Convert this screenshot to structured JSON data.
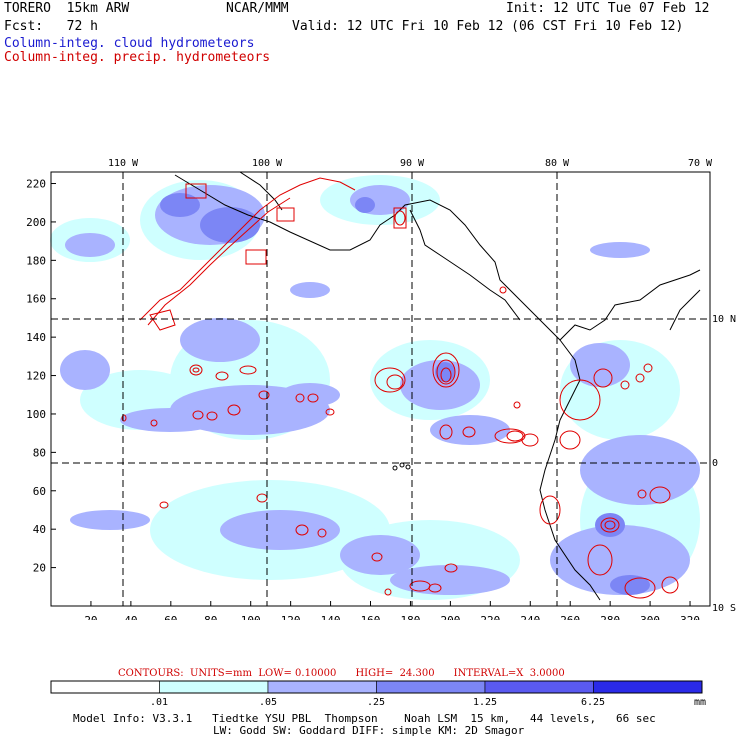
{
  "header": {
    "title_left": "TORERO  15km ARW",
    "center": "NCAR/MMM",
    "init": "Init: 12 UTC Tue 07 Feb 12",
    "fcst": "Fcst:   72 h",
    "valid": "Valid: 12 UTC Fri 10 Feb 12 (06 CST Fri 10 Feb 12)",
    "field1": "Column-integ. cloud hydrometeors",
    "field2": "Column-integ. precip. hydrometeors"
  },
  "map": {
    "lon_labels": [
      "110 W",
      "100 W",
      "90 W",
      "80 W",
      "70 W"
    ],
    "lat_labels": [
      "10 N",
      "0",
      "10 S"
    ],
    "x_ticks": [
      "20",
      "40",
      "60",
      "80",
      "100",
      "120",
      "140",
      "160",
      "180",
      "200",
      "220",
      "240",
      "260",
      "280",
      "300",
      "320"
    ],
    "y_ticks": [
      "20",
      "40",
      "60",
      "80",
      "100",
      "120",
      "140",
      "160",
      "180",
      "200",
      "220"
    ],
    "colors": {
      "light": "#cfffff",
      "mid": "#a9b3ff",
      "dark": "#7c86f5",
      "precip": "#e00000",
      "border": "#000000"
    }
  },
  "contours_text": "CONTOURS:  UNITS=mm  LOW= 0.10000      HIGH=  24.300      INTERVAL=X  3.0000",
  "legend": {
    "labels": [
      ".01",
      ".05",
      ".25",
      "1.25",
      "6.25"
    ],
    "unit": "mm",
    "colors": [
      "#ffffff",
      "#cfffff",
      "#a9b3ff",
      "#7c86f5",
      "#5a5af0",
      "#2a2ae8"
    ]
  },
  "model_info": {
    "line1": "Model Info: V3.3.1   Tiedtke YSU PBL  Thompson    Noah LSM  15 km,   44 levels,   66 sec",
    "line2": "LW: Godd SW: Goddard DIFF: simple KM: 2D Smagor"
  }
}
